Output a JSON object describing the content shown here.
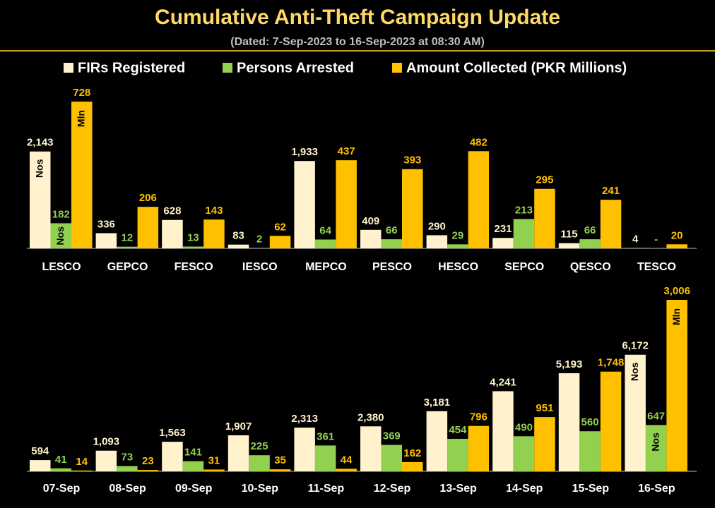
{
  "header": {
    "title": "Cumulative Anti-Theft Campaign Update",
    "subtitle": "(Dated: 7-Sep-2023 to 16-Sep-2023 at 08:30 AM)"
  },
  "chart_data": [
    {
      "type": "bar",
      "categories": [
        "LESCO",
        "GEPCO",
        "FESCO",
        "IESCO",
        "MEPCO",
        "PESCO",
        "HESCO",
        "SEPCO",
        "QESCO",
        "TESCO"
      ],
      "series": [
        {
          "name": "FIRs Registered",
          "color": "#FFF2CC",
          "unit": "Nos",
          "values": [
            2143,
            336,
            628,
            83,
            1933,
            409,
            290,
            231,
            115,
            4
          ],
          "value_labels": [
            "2,143",
            "336",
            "628",
            "83",
            "1,933",
            "409",
            "290",
            "231",
            "115",
            "4"
          ]
        },
        {
          "name": "Persons Arrested",
          "color": "#92D050",
          "unit": "Nos",
          "values": [
            182,
            12,
            13,
            2,
            64,
            66,
            29,
            213,
            66,
            0
          ],
          "value_labels": [
            "182",
            "12",
            "13",
            "2",
            "64",
            "66",
            "29",
            "213",
            "66",
            "-"
          ]
        },
        {
          "name": "Amount Collected (PKR Millions)",
          "color": "#FFC000",
          "unit": "Mln",
          "values": [
            728,
            206,
            143,
            62,
            437,
            393,
            482,
            295,
            241,
            20
          ]
        }
      ]
    },
    {
      "type": "bar",
      "categories": [
        "07-Sep",
        "08-Sep",
        "09-Sep",
        "10-Sep",
        "11-Sep",
        "12-Sep",
        "13-Sep",
        "14-Sep",
        "15-Sep",
        "16-Sep"
      ],
      "series": [
        {
          "name": "FIRs Registered",
          "color": "#FFF2CC",
          "unit": "Nos",
          "values": [
            594,
            1093,
            1563,
            1907,
            2313,
            2380,
            3181,
            4241,
            5193,
            6172
          ],
          "value_labels": [
            "594",
            "1,093",
            "1,563",
            "1,907",
            "2,313",
            "2,380",
            "3,181",
            "4,241",
            "5,193",
            "6,172"
          ]
        },
        {
          "name": "Persons Arrested",
          "color": "#92D050",
          "unit": "Nos",
          "values": [
            41,
            73,
            141,
            225,
            361,
            369,
            454,
            490,
            560,
            647
          ]
        },
        {
          "name": "Amount Collected (PKR Millions)",
          "color": "#FFC000",
          "unit": "Mln",
          "values": [
            14,
            23,
            31,
            35,
            44,
            162,
            796,
            951,
            1748,
            3006
          ],
          "value_labels": [
            "14",
            "23",
            "31",
            "35",
            "44",
            "162",
            "796",
            "951",
            "1,748",
            "3,006"
          ]
        }
      ]
    }
  ]
}
